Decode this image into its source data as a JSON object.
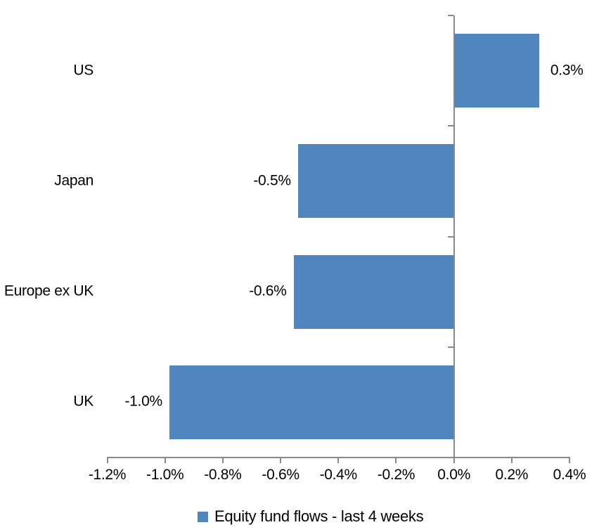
{
  "chart_data": {
    "type": "bar",
    "orientation": "horizontal",
    "title": "",
    "xlabel": "",
    "ylabel": "",
    "categories": [
      "US",
      "Japan",
      "Europe ex UK",
      "UK"
    ],
    "values": [
      0.3,
      -0.5,
      -0.6,
      -1.0
    ],
    "values_plotted": [
      0.295,
      -0.54,
      -0.555,
      -0.985
    ],
    "data_labels": [
      "0.3%",
      "-0.5%",
      "-0.6%",
      "-1.0%"
    ],
    "x_tick_labels": [
      "-1.2%",
      "-1.0%",
      "-0.8%",
      "-0.6%",
      "-0.4%",
      "-0.2%",
      "0.0%",
      "0.2%",
      "0.4%"
    ],
    "x_tick_values": [
      -1.2,
      -1.0,
      -0.8,
      -0.6,
      -0.4,
      -0.2,
      0.0,
      0.2,
      0.4
    ],
    "xlim": [
      -1.2,
      0.4
    ],
    "grid": false,
    "legend": {
      "position": "bottom",
      "entries": [
        {
          "label": "Equity fund flows - last 4 weeks",
          "color": "#4F86BE"
        }
      ]
    },
    "colors": {
      "bar": "#4F86BE",
      "axis": "#898989",
      "text": "#000000",
      "background": "#FFFFFF"
    }
  }
}
